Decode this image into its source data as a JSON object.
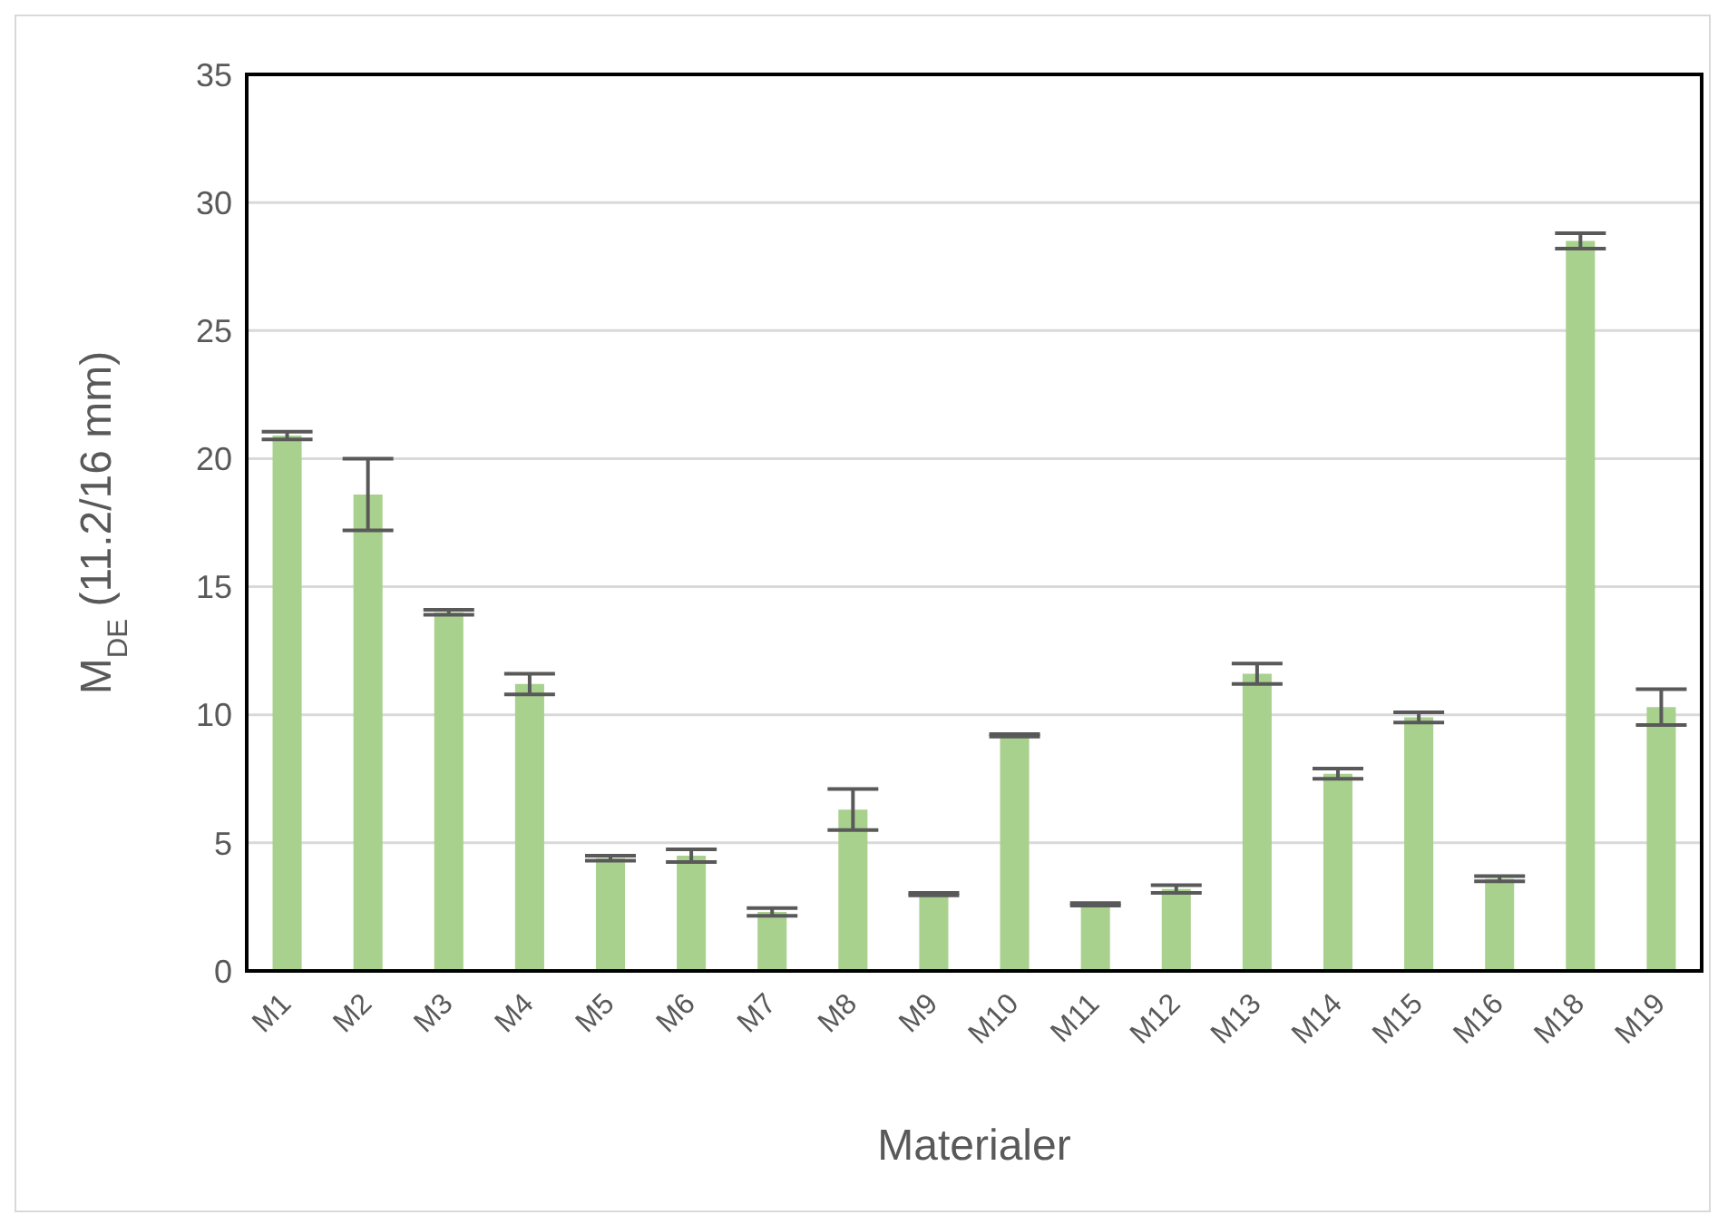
{
  "chart_data": {
    "type": "bar",
    "xlabel": "Materialer",
    "ylabel": "M$_{DE}$ (11.2/16 mm)",
    "categories": [
      "M1",
      "M2",
      "M3",
      "M4",
      "M5",
      "M6",
      "M7",
      "M8",
      "M9",
      "M10",
      "M11",
      "M12",
      "M13",
      "M14",
      "M15",
      "M16",
      "M18",
      "M19"
    ],
    "values": [
      20.9,
      18.6,
      14.0,
      11.2,
      4.4,
      4.5,
      2.3,
      6.3,
      3.0,
      9.2,
      2.6,
      3.2,
      11.6,
      7.7,
      9.9,
      3.6,
      28.5,
      10.3
    ],
    "errors": [
      0.15,
      1.4,
      0.1,
      0.4,
      0.1,
      0.25,
      0.15,
      0.8,
      0.05,
      0.05,
      0.05,
      0.15,
      0.4,
      0.2,
      0.2,
      0.1,
      0.3,
      0.7
    ],
    "color": "#a9d18e",
    "ylim": [
      0,
      35
    ],
    "yticks": [
      0,
      5,
      10,
      15,
      20,
      25,
      30,
      35
    ],
    "grid": "y",
    "legend": false
  }
}
